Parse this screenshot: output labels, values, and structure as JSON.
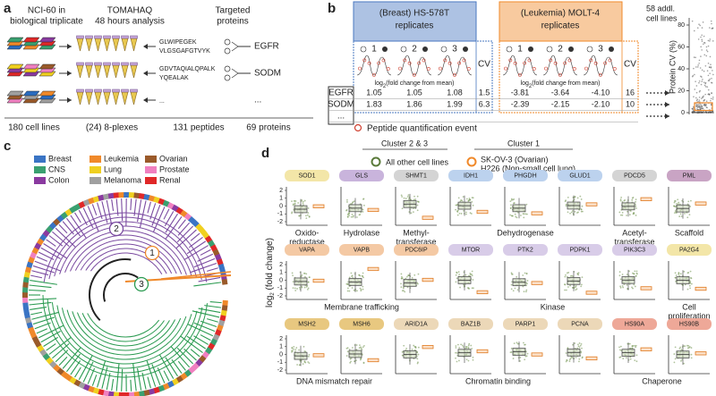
{
  "panel_a": {
    "label": "a",
    "steps": [
      [
        "NCI-60 in",
        "biological triplicate"
      ],
      [
        "TOMAHAQ",
        "48 hours analysis"
      ],
      [
        "Targeted",
        "proteins"
      ]
    ],
    "peptides": [
      {
        "lines": [
          "GLWIPEGEK",
          "VLGSGAFGTVYK"
        ],
        "protein": "EGFR"
      },
      {
        "lines": [
          "GDVTAQIALQPALK",
          "YQEALAK"
        ],
        "protein": "SODM"
      },
      {
        "lines": [
          "..."
        ],
        "protein": "..."
      }
    ],
    "counts": [
      "180 cell lines",
      "(24) 8-plexes",
      "131 peptides",
      "69 proteins"
    ]
  },
  "panel_b": {
    "label": "b",
    "groups": [
      {
        "title": [
          "(Breast) HS-578T",
          "replicates"
        ],
        "color": "#4a78c0"
      },
      {
        "title": [
          "(Leukemia) MOLT-4",
          "replicates"
        ],
        "color": "#f0892a"
      }
    ],
    "extra": [
      "58 addl.",
      "cell lines"
    ],
    "replicates": [
      "1",
      "2",
      "3"
    ],
    "cv": "CV",
    "axis": {
      "log": "log",
      "sub": "2",
      "rest": "(fold change from mean)"
    },
    "rows": [
      [
        "EGFR",
        "1.05",
        "1.05",
        "1.08",
        "1.5",
        "-3.81",
        "-3.64",
        "-4.10",
        "16"
      ],
      [
        "SODM",
        "1.83",
        "1.86",
        "1.99",
        "6.3",
        "-2.39",
        "-2.15",
        "-2.10",
        "10"
      ],
      [
        "..."
      ]
    ],
    "legend": "Peptide quantification event",
    "cv_axis": {
      "label": "Protein CV (%)",
      "ticks": [
        0,
        20,
        40,
        60,
        80
      ]
    }
  },
  "panel_c": {
    "label": "c",
    "legend": [
      {
        "name": "Breast",
        "color": "#3a74c4"
      },
      {
        "name": "Leukemia",
        "color": "#f0892a"
      },
      {
        "name": "Ovarian",
        "color": "#9a5a2a"
      },
      {
        "name": "CNS",
        "color": "#3aa070"
      },
      {
        "name": "Lung",
        "color": "#f0d020"
      },
      {
        "name": "Prostate",
        "color": "#f080c0"
      },
      {
        "name": "Colon",
        "color": "#8a3aa0"
      },
      {
        "name": "Melanoma",
        "color": "#a0a0a0"
      },
      {
        "name": "Renal",
        "color": "#e02828"
      }
    ],
    "clusters": [
      {
        "label": "1",
        "color": "#f0892a"
      },
      {
        "label": "2",
        "color": "#7a4aa0"
      },
      {
        "label": "3",
        "color": "#2a9a50"
      }
    ]
  },
  "panel_d": {
    "label": "d",
    "clusters": [
      "Cluster 2 & 3",
      "Cluster 1"
    ],
    "legend": [
      {
        "lines": [
          "All other cell lines"
        ],
        "color": "#5a7a3a"
      },
      {
        "lines": [
          "SK-OV-3 (Ovarian)",
          "H226 (Non-small cell lung)"
        ],
        "color": "#f0892a"
      }
    ],
    "ylabel": {
      "log": "log",
      "sub": "2",
      "rest": " (fold change)"
    },
    "yticks": [
      2,
      1,
      0,
      -1,
      -2
    ],
    "rows": [
      {
        "proteins": [
          {
            "name": "SOD1",
            "color": "#f3e6a8"
          },
          {
            "name": "GLS",
            "color": "#c9b4dc"
          },
          {
            "name": "SHMT1",
            "color": "#d4d4d4"
          },
          {
            "name": "IDH1",
            "color": "#bcd2ee"
          },
          {
            "name": "PHGDH",
            "color": "#bcd2ee"
          },
          {
            "name": "GLUD1",
            "color": "#bcd2ee"
          },
          {
            "name": "PDCD5",
            "color": "#d4d4d4"
          },
          {
            "name": "PML",
            "color": "#c9a4c4"
          }
        ],
        "categories": [
          [
            "Oxido-",
            "reductase"
          ],
          [
            "Hydrolase"
          ],
          [
            "Methyl-",
            "transferase"
          ],
          [
            "Dehydrogenase"
          ],
          [
            "Acetyl-",
            "transferase"
          ],
          [
            "Scaffold"
          ]
        ]
      },
      {
        "proteins": [
          {
            "name": "VAPA",
            "color": "#f4c9a4"
          },
          {
            "name": "VAPB",
            "color": "#f4c9a4"
          },
          {
            "name": "PDC6IP",
            "color": "#f4c9a4"
          },
          {
            "name": "MTOR",
            "color": "#d8cce8"
          },
          {
            "name": "PTK2",
            "color": "#d8cce8"
          },
          {
            "name": "PDPK1",
            "color": "#d8cce8"
          },
          {
            "name": "PIK3C3",
            "color": "#d8cce8"
          },
          {
            "name": "PA2G4",
            "color": "#f3e6a8"
          }
        ],
        "categories": [
          [
            "Membrane trafficking"
          ],
          [
            "Kinase"
          ],
          [
            "Cell",
            "proliferation"
          ]
        ]
      },
      {
        "proteins": [
          {
            "name": "MSH2",
            "color": "#e8c880"
          },
          {
            "name": "MSH6",
            "color": "#e8c880"
          },
          {
            "name": "ARID1A",
            "color": "#ecd8b8"
          },
          {
            "name": "BAZ1B",
            "color": "#ecd8b8"
          },
          {
            "name": "PARP1",
            "color": "#ecd8b8"
          },
          {
            "name": "PCNA",
            "color": "#ecd8b8"
          },
          {
            "name": "HS90A",
            "color": "#eea898"
          },
          {
            "name": "HS90B",
            "color": "#eea898"
          }
        ],
        "categories": [
          [
            "DNA mismatch repair"
          ],
          [
            "Chromatin binding"
          ],
          [
            "Chaperone"
          ]
        ]
      }
    ]
  }
}
